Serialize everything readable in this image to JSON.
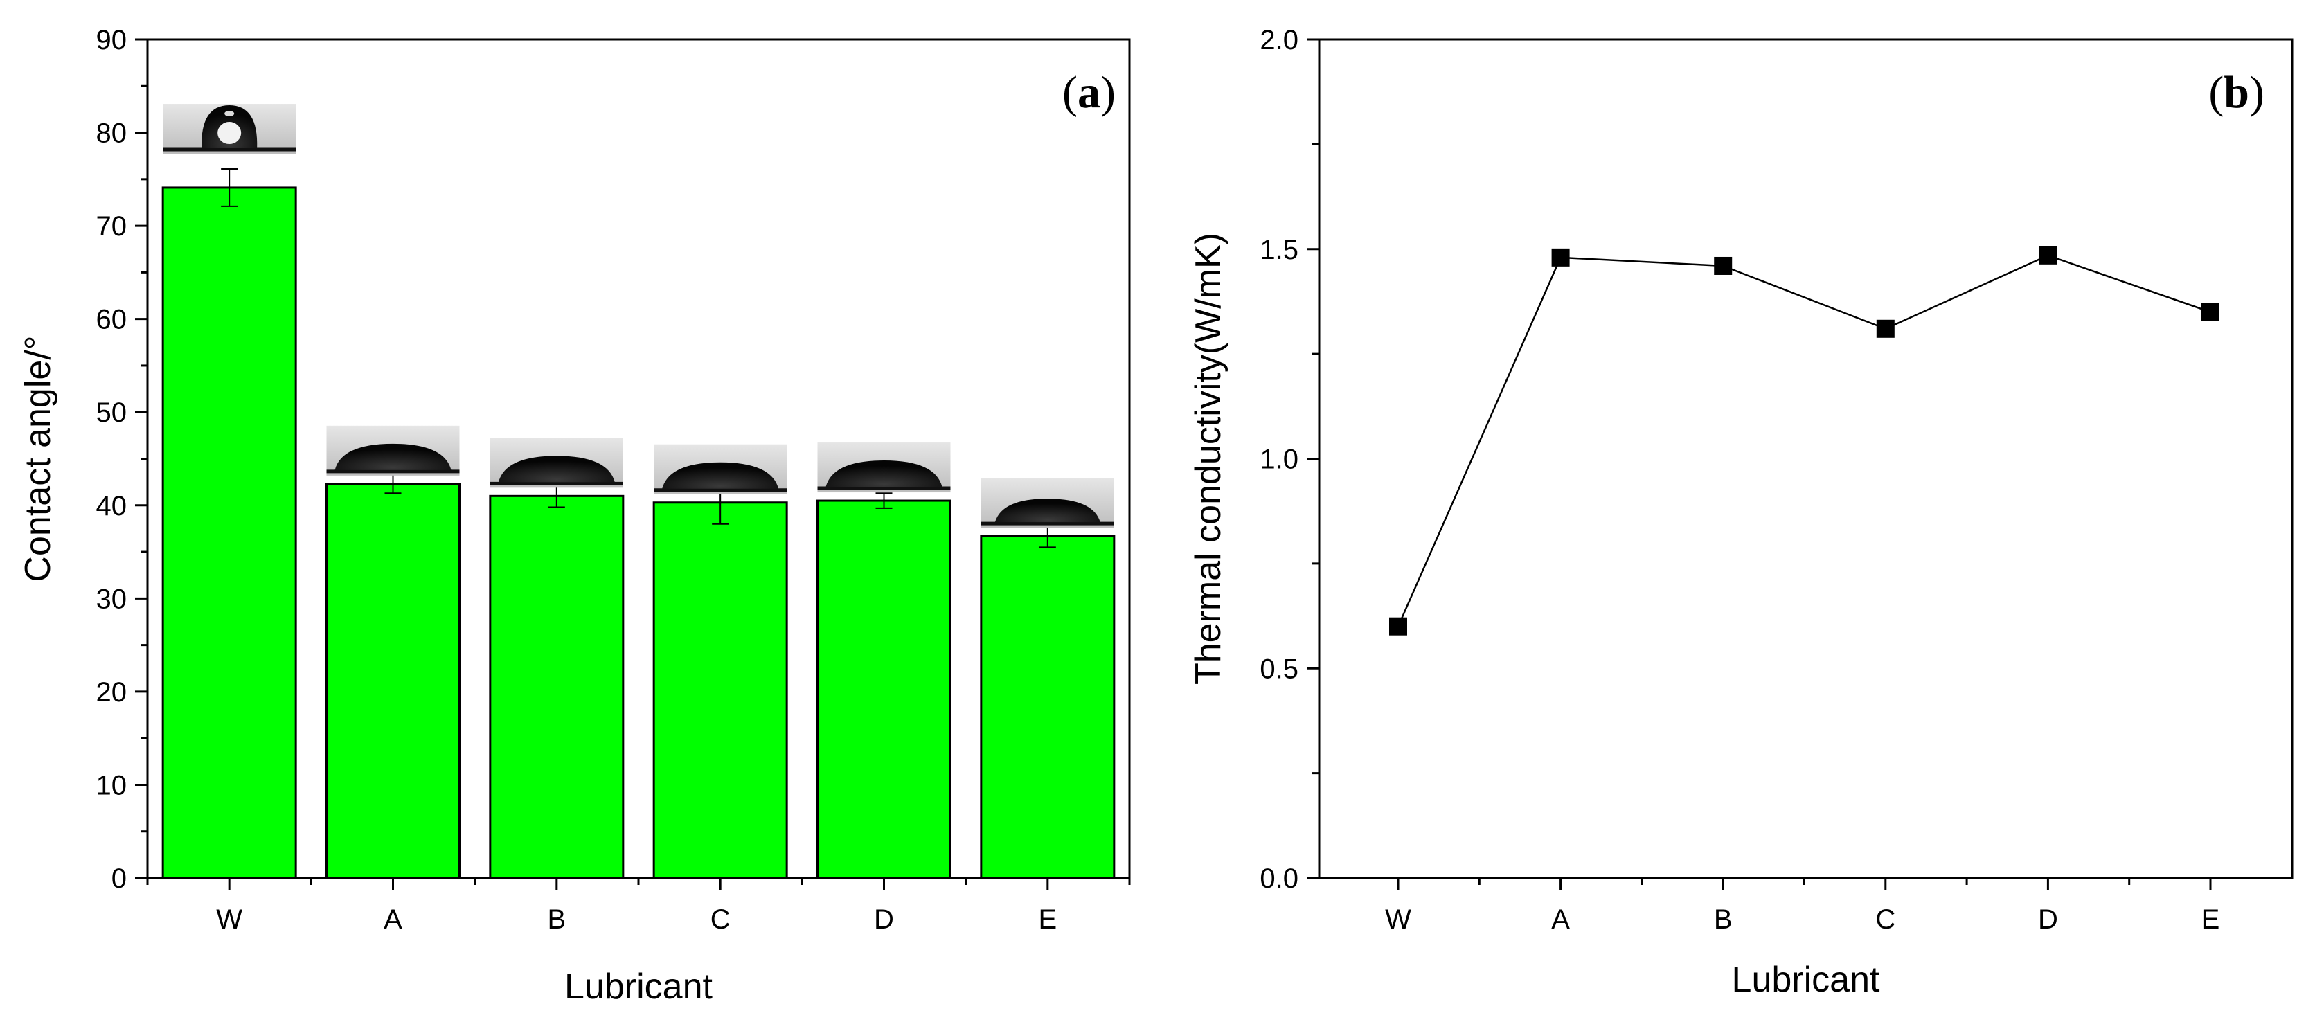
{
  "figure": {
    "panel_a_label": "a",
    "panel_b_label": "b"
  },
  "chart_data": [
    {
      "type": "bar",
      "panel": "a",
      "title": "",
      "xlabel": "Lubricant",
      "ylabel": "Contact angle/°",
      "categories": [
        "W",
        "A",
        "B",
        "C",
        "D",
        "E"
      ],
      "values": [
        74.1,
        42.3,
        41.0,
        40.3,
        40.5,
        36.7
      ],
      "errors": [
        2.0,
        1.0,
        1.2,
        2.3,
        0.8,
        1.2
      ],
      "ylim": [
        0,
        90
      ],
      "yticks": [
        0,
        10,
        20,
        30,
        40,
        50,
        60,
        70,
        80,
        90
      ],
      "ytick_labels": [
        "0",
        "10",
        "20",
        "30",
        "40",
        "50",
        "60",
        "70",
        "80",
        "90"
      ],
      "bar_color": "#00ff00",
      "annotations": "droplet inset image above each bar"
    },
    {
      "type": "line",
      "panel": "b",
      "title": "",
      "xlabel": "Lubricant",
      "ylabel": "Thermal conductivity(W/mK)",
      "categories": [
        "W",
        "A",
        "B",
        "C",
        "D",
        "E"
      ],
      "values": [
        0.6,
        1.48,
        1.46,
        1.31,
        1.485,
        1.35
      ],
      "ylim": [
        0.0,
        2.0
      ],
      "yticks": [
        0.0,
        0.5,
        1.0,
        1.5,
        2.0
      ],
      "ytick_labels": [
        "0.0",
        "0.5",
        "1.0",
        "1.5",
        "2.0"
      ],
      "marker": "square",
      "line_color": "#000000"
    }
  ]
}
